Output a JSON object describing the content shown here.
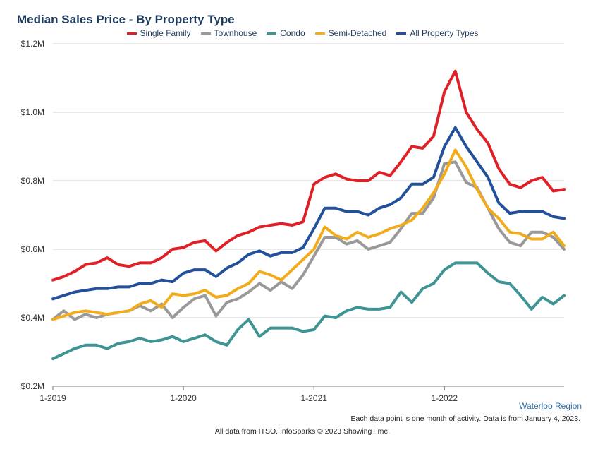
{
  "title": "Median Sales Price - By Property Type",
  "region_label": "Waterloo Region",
  "footnote": "Each data point is one month of activity. Data is from January 4, 2023.",
  "credit": "All data from ITSO. InfoSparks © 2023 ShowingTime.",
  "chart_data": {
    "type": "line",
    "title": "Median Sales Price - By Property Type",
    "x_tick_labels": [
      "1-2019",
      "1-2020",
      "1-2021",
      "1-2022"
    ],
    "y_tick_labels": [
      "$0.2M",
      "$0.4M",
      "$0.6M",
      "$0.8M",
      "$1.0M",
      "$1.2M"
    ],
    "y_ticks": [
      0.2,
      0.4,
      0.6,
      0.8,
      1.0,
      1.2
    ],
    "ylim": [
      0.2,
      1.2
    ],
    "x_months": 48,
    "grid": true,
    "legend_position": "top-center",
    "series": [
      {
        "name": "Single Family",
        "color": "#e02027",
        "values": [
          0.51,
          0.52,
          0.535,
          0.555,
          0.56,
          0.575,
          0.555,
          0.55,
          0.56,
          0.56,
          0.575,
          0.6,
          0.605,
          0.62,
          0.625,
          0.595,
          0.62,
          0.64,
          0.65,
          0.665,
          0.67,
          0.675,
          0.67,
          0.68,
          0.79,
          0.81,
          0.82,
          0.805,
          0.8,
          0.8,
          0.825,
          0.815,
          0.855,
          0.9,
          0.895,
          0.93,
          1.06,
          1.12,
          1.0,
          0.95,
          0.91,
          0.835,
          0.79,
          0.78,
          0.8,
          0.81,
          0.77,
          0.775
        ]
      },
      {
        "name": "Townhouse",
        "color": "#999999",
        "values": [
          0.395,
          0.42,
          0.395,
          0.41,
          0.4,
          0.41,
          0.415,
          0.42,
          0.435,
          0.42,
          0.44,
          0.4,
          0.43,
          0.455,
          0.465,
          0.405,
          0.445,
          0.455,
          0.475,
          0.5,
          0.48,
          0.505,
          0.485,
          0.525,
          0.58,
          0.635,
          0.635,
          0.615,
          0.625,
          0.6,
          0.61,
          0.62,
          0.66,
          0.705,
          0.705,
          0.75,
          0.85,
          0.855,
          0.795,
          0.78,
          0.72,
          0.66,
          0.62,
          0.61,
          0.65,
          0.65,
          0.635,
          0.6
        ]
      },
      {
        "name": "Condo",
        "color": "#3e9394",
        "values": [
          0.28,
          0.295,
          0.31,
          0.32,
          0.32,
          0.31,
          0.325,
          0.33,
          0.34,
          0.33,
          0.335,
          0.345,
          0.33,
          0.34,
          0.35,
          0.33,
          0.32,
          0.365,
          0.395,
          0.345,
          0.37,
          0.37,
          0.37,
          0.36,
          0.365,
          0.405,
          0.4,
          0.42,
          0.43,
          0.425,
          0.425,
          0.43,
          0.475,
          0.445,
          0.485,
          0.5,
          0.54,
          0.56,
          0.56,
          0.56,
          0.53,
          0.505,
          0.5,
          0.465,
          0.425,
          0.46,
          0.44,
          0.465
        ]
      },
      {
        "name": "Semi-Detached",
        "color": "#f2ac1b",
        "values": [
          0.395,
          0.405,
          0.415,
          0.42,
          0.415,
          0.41,
          0.415,
          0.42,
          0.44,
          0.45,
          0.43,
          0.47,
          0.465,
          0.47,
          0.48,
          0.46,
          0.465,
          0.485,
          0.5,
          0.535,
          0.525,
          0.51,
          0.54,
          0.57,
          0.6,
          0.665,
          0.64,
          0.63,
          0.65,
          0.635,
          0.645,
          0.66,
          0.67,
          0.685,
          0.72,
          0.765,
          0.82,
          0.89,
          0.84,
          0.775,
          0.72,
          0.69,
          0.65,
          0.645,
          0.63,
          0.63,
          0.65,
          0.61
        ]
      },
      {
        "name": "All Property Types",
        "color": "#23509b",
        "values": [
          0.455,
          0.465,
          0.475,
          0.48,
          0.485,
          0.485,
          0.49,
          0.49,
          0.5,
          0.5,
          0.51,
          0.505,
          0.53,
          0.54,
          0.54,
          0.52,
          0.545,
          0.56,
          0.585,
          0.595,
          0.58,
          0.59,
          0.59,
          0.605,
          0.66,
          0.72,
          0.72,
          0.71,
          0.71,
          0.7,
          0.72,
          0.73,
          0.75,
          0.79,
          0.79,
          0.81,
          0.9,
          0.955,
          0.9,
          0.855,
          0.81,
          0.735,
          0.705,
          0.71,
          0.71,
          0.71,
          0.695,
          0.69
        ]
      }
    ]
  }
}
